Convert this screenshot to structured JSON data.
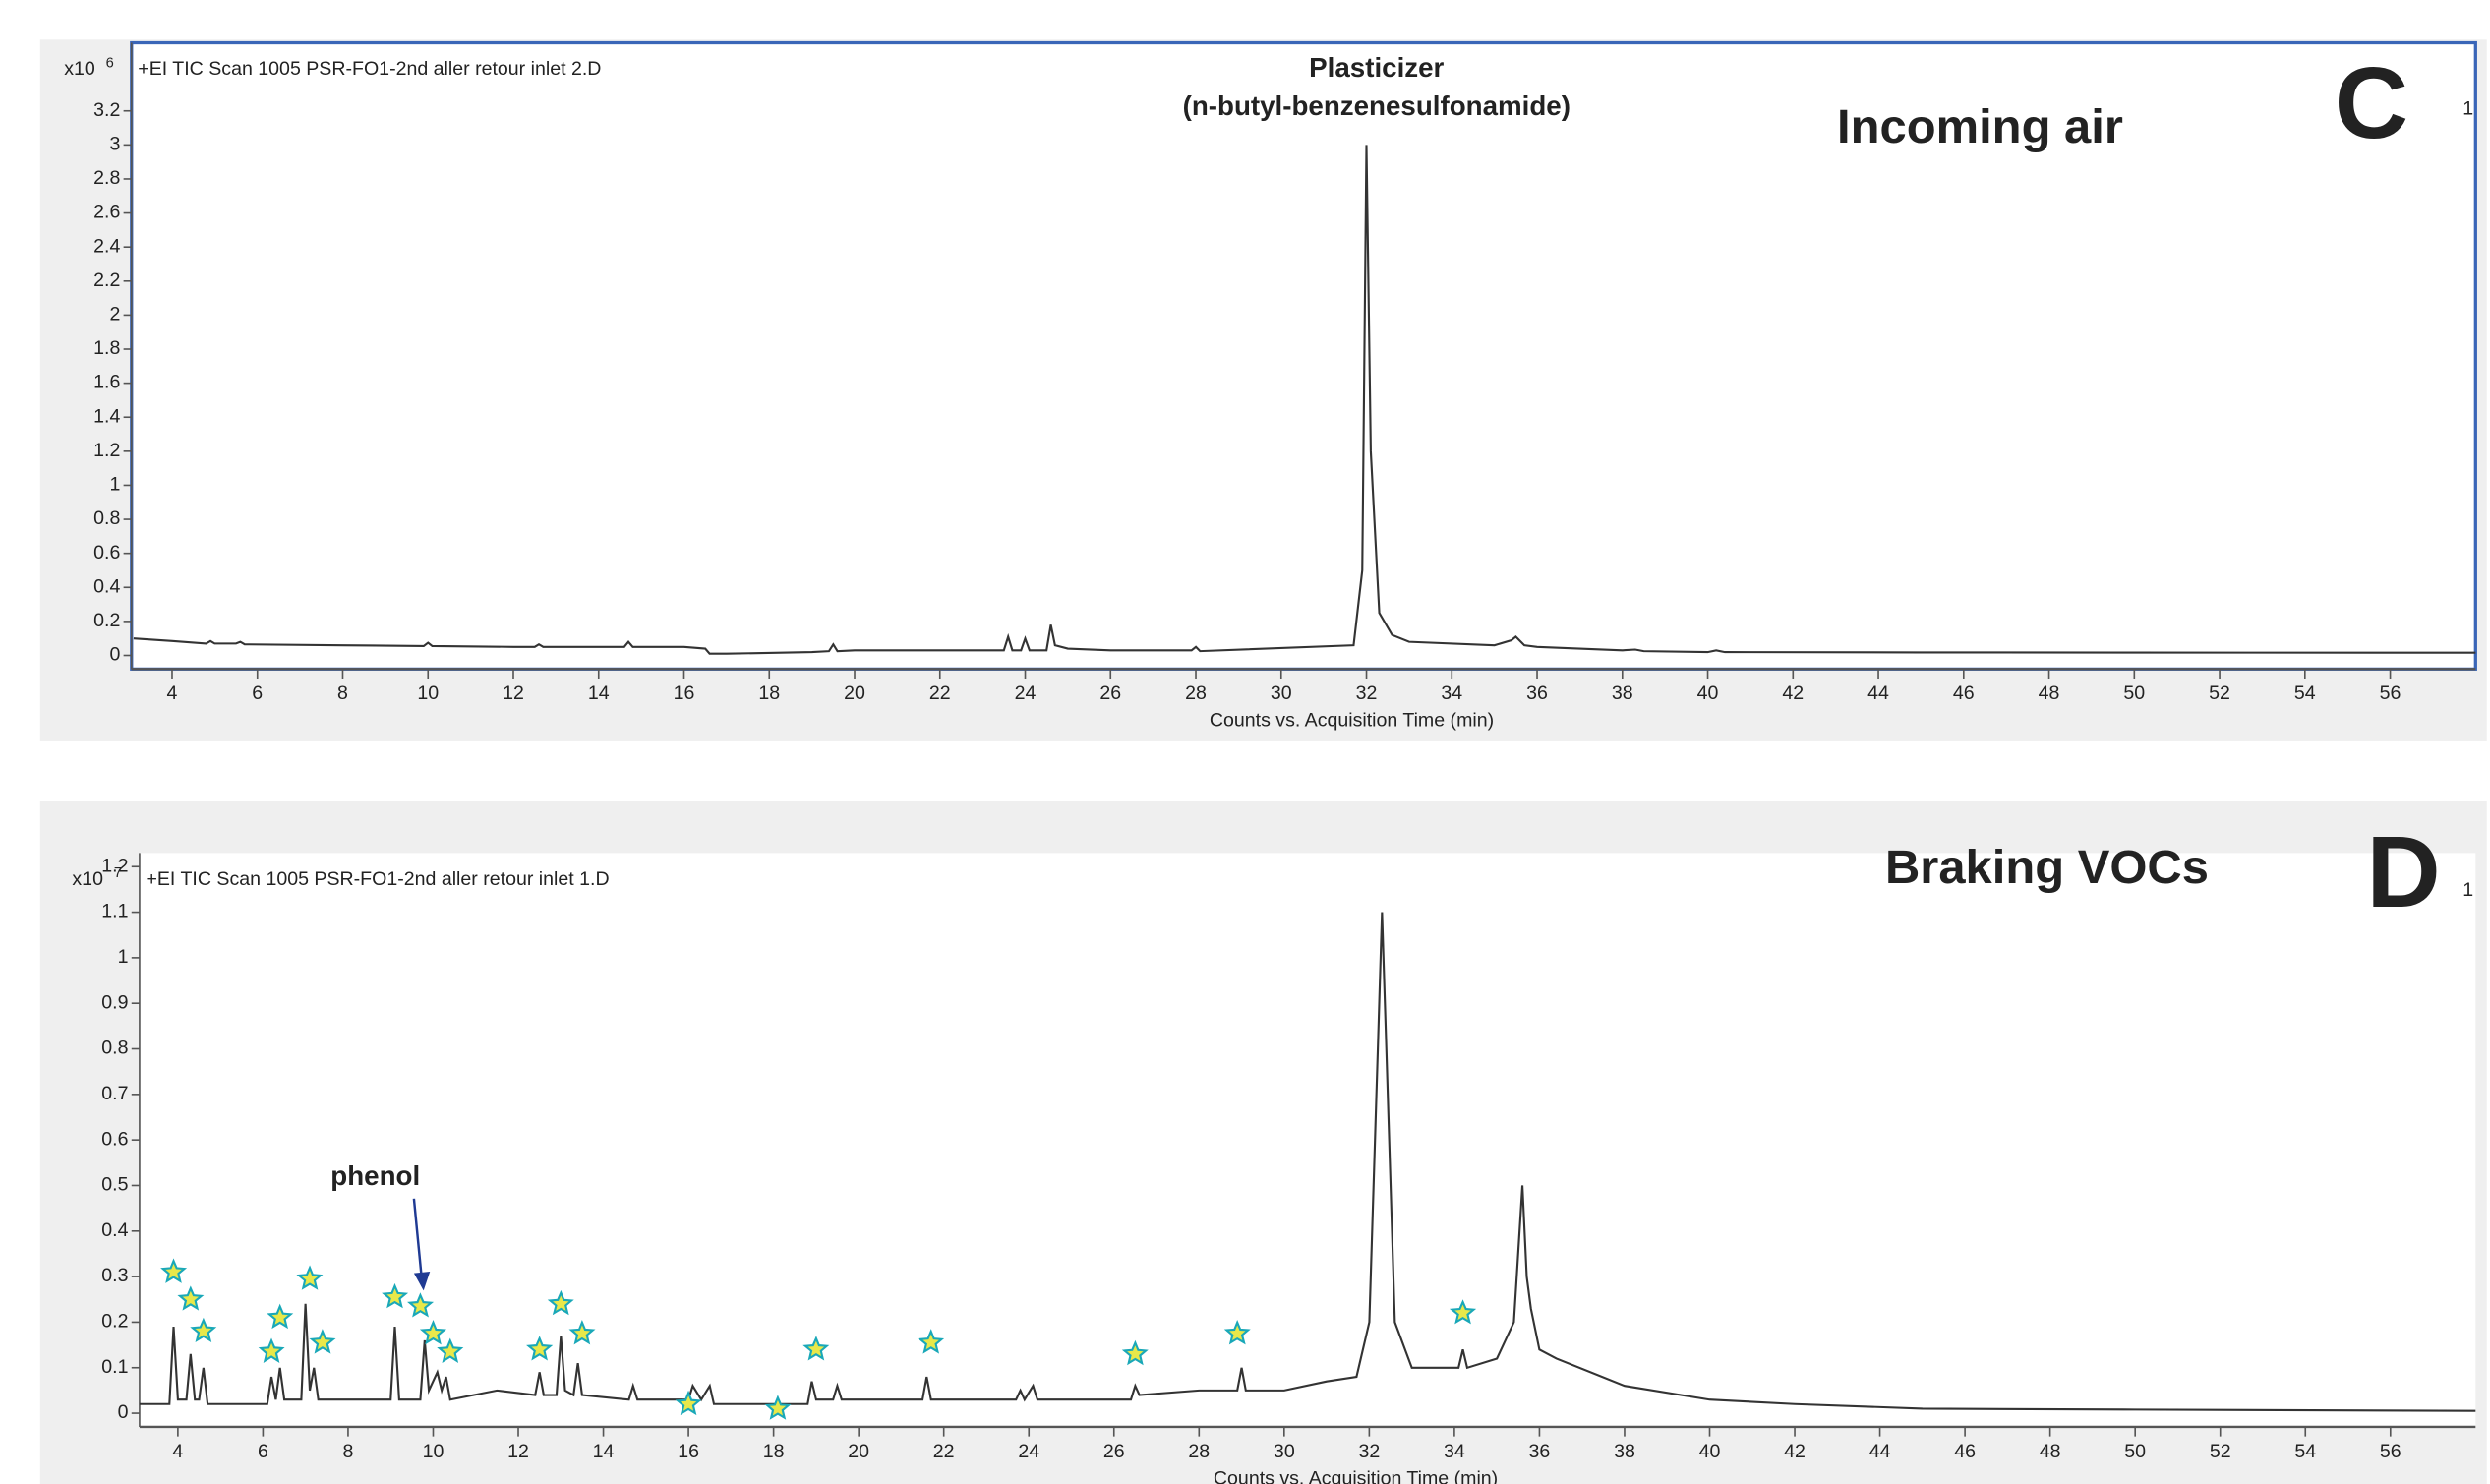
{
  "chart_data": [
    {
      "type": "line",
      "header": "+EI TIC Scan 1005 PSR-FO1-2nd aller retour inlet 2.D",
      "y_multiplier_base": "x10",
      "y_multiplier_exponent": "6",
      "panel_letter": "C",
      "panel_title": "Incoming air",
      "corner_note": "1",
      "xlabel": "Counts vs. Acquisition Time (min)",
      "annotations": [
        "Plasticizer",
        "(n-butyl-benzenesulfonamide)"
      ],
      "color": "#333333",
      "border_color": "#3a66b8",
      "xlim": [
        3.05,
        58
      ],
      "ylim": [
        -0.08,
        3.6
      ],
      "xticks": [
        4,
        6,
        8,
        10,
        12,
        14,
        16,
        18,
        20,
        22,
        24,
        26,
        28,
        30,
        32,
        34,
        36,
        38,
        40,
        42,
        44,
        46,
        48,
        50,
        52,
        54,
        56
      ],
      "yticks": [
        0,
        0.2,
        0.4,
        0.6,
        0.8,
        1,
        1.2,
        1.4,
        1.6,
        1.8,
        2,
        2.2,
        2.4,
        2.6,
        2.8,
        3,
        3.2
      ],
      "x": [
        3.1,
        4,
        4.8,
        4.9,
        5.0,
        5.5,
        5.6,
        5.7,
        8,
        9.9,
        10.0,
        10.1,
        12,
        12.5,
        12.6,
        12.7,
        14.6,
        14.7,
        14.8,
        16,
        16.5,
        16.6,
        17,
        19,
        19.4,
        19.5,
        19.6,
        20,
        23.5,
        23.6,
        23.7,
        23.9,
        24.0,
        24.1,
        24.5,
        24.6,
        24.7,
        25,
        26,
        27.9,
        28.0,
        28.1,
        31.7,
        31.9,
        32.0,
        32.1,
        32.3,
        32.6,
        33,
        35,
        35.4,
        35.5,
        35.7,
        36,
        38,
        38.3,
        38.5,
        40,
        40.2,
        40.4,
        45,
        50,
        58
      ],
      "values": [
        0.1,
        0.085,
        0.07,
        0.085,
        0.07,
        0.07,
        0.08,
        0.065,
        0.06,
        0.055,
        0.075,
        0.055,
        0.05,
        0.05,
        0.065,
        0.05,
        0.05,
        0.08,
        0.05,
        0.05,
        0.04,
        0.01,
        0.01,
        0.02,
        0.025,
        0.065,
        0.025,
        0.03,
        0.03,
        0.11,
        0.03,
        0.03,
        0.1,
        0.03,
        0.03,
        0.18,
        0.06,
        0.04,
        0.03,
        0.03,
        0.05,
        0.025,
        0.06,
        0.5,
        3.0,
        1.2,
        0.25,
        0.12,
        0.08,
        0.06,
        0.09,
        0.11,
        0.06,
        0.05,
        0.03,
        0.035,
        0.025,
        0.02,
        0.03,
        0.02,
        0.018,
        0.017,
        0.016
      ]
    },
    {
      "type": "line",
      "header": "+EI TIC Scan 1005 PSR-FO1-2nd aller retour inlet 1.D",
      "y_multiplier_base": "x10",
      "y_multiplier_exponent": "7",
      "panel_letter": "D",
      "panel_title": "Braking VOCs",
      "corner_note": "1",
      "xlabel": "Counts vs. Acquisition Time (min)",
      "annotations": [
        "phenol"
      ],
      "color": "#333333",
      "xlim": [
        3.1,
        58
      ],
      "ylim": [
        -0.03,
        1.23
      ],
      "xticks": [
        4,
        6,
        8,
        10,
        12,
        14,
        16,
        18,
        20,
        22,
        24,
        26,
        28,
        30,
        32,
        34,
        36,
        38,
        40,
        42,
        44,
        46,
        48,
        50,
        52,
        54,
        56
      ],
      "yticks": [
        0,
        0.1,
        0.2,
        0.3,
        0.4,
        0.5,
        0.6,
        0.7,
        0.8,
        0.9,
        1,
        1.1,
        1.2
      ],
      "x": [
        3.1,
        3.8,
        3.9,
        4.0,
        4.2,
        4.3,
        4.4,
        4.5,
        4.6,
        4.7,
        6.1,
        6.2,
        6.3,
        6.4,
        6.5,
        6.9,
        7.0,
        7.1,
        7.2,
        7.3,
        9.0,
        9.1,
        9.2,
        9.7,
        9.8,
        9.9,
        10.1,
        10.2,
        10.3,
        10.4,
        11.5,
        12.4,
        12.5,
        12.6,
        12.9,
        13.0,
        13.1,
        13.3,
        13.4,
        13.5,
        14.6,
        14.7,
        14.8,
        16.0,
        16.1,
        16.3,
        16.5,
        16.6,
        18.8,
        18.9,
        19.0,
        19.4,
        19.5,
        19.6,
        21.5,
        21.6,
        21.7,
        23.7,
        23.8,
        23.9,
        24.1,
        24.2,
        26.4,
        26.5,
        26.6,
        28,
        28.9,
        29.0,
        29.1,
        30,
        31,
        31.7,
        32.0,
        32.2,
        32.3,
        32.4,
        32.6,
        33,
        34.1,
        34.2,
        34.3,
        35,
        35.4,
        35.6,
        35.7,
        35.8,
        36.0,
        36.4,
        38,
        40,
        42,
        45,
        50,
        58
      ],
      "values": [
        0.02,
        0.02,
        0.19,
        0.03,
        0.03,
        0.13,
        0.03,
        0.03,
        0.1,
        0.02,
        0.02,
        0.08,
        0.03,
        0.1,
        0.03,
        0.03,
        0.24,
        0.05,
        0.1,
        0.03,
        0.03,
        0.19,
        0.03,
        0.03,
        0.16,
        0.05,
        0.09,
        0.05,
        0.08,
        0.03,
        0.05,
        0.04,
        0.09,
        0.04,
        0.04,
        0.17,
        0.05,
        0.04,
        0.11,
        0.04,
        0.03,
        0.06,
        0.03,
        0.03,
        0.06,
        0.03,
        0.06,
        0.02,
        0.02,
        0.07,
        0.03,
        0.03,
        0.06,
        0.03,
        0.03,
        0.08,
        0.03,
        0.03,
        0.05,
        0.03,
        0.06,
        0.03,
        0.03,
        0.06,
        0.04,
        0.05,
        0.05,
        0.1,
        0.05,
        0.05,
        0.07,
        0.08,
        0.2,
        0.8,
        1.1,
        0.8,
        0.2,
        0.1,
        0.1,
        0.14,
        0.1,
        0.12,
        0.2,
        0.5,
        0.3,
        0.23,
        0.14,
        0.12,
        0.06,
        0.03,
        0.02,
        0.01,
        0.008,
        0.005
      ],
      "markers": {
        "marker_color": "#e8e84a",
        "edge_color": "#1aa8b8",
        "x": [
          3.9,
          4.3,
          4.6,
          6.2,
          6.4,
          7.1,
          7.4,
          9.1,
          9.7,
          10.0,
          10.4,
          12.5,
          13.0,
          13.5,
          16.0,
          18.1,
          19.0,
          21.7,
          26.5,
          28.9,
          34.2
        ],
        "y": [
          0.31,
          0.25,
          0.18,
          0.135,
          0.21,
          0.295,
          0.155,
          0.255,
          0.235,
          0.175,
          0.135,
          0.14,
          0.24,
          0.175,
          0.02,
          0.01,
          0.14,
          0.155,
          0.13,
          0.175,
          0.22
        ]
      }
    }
  ]
}
